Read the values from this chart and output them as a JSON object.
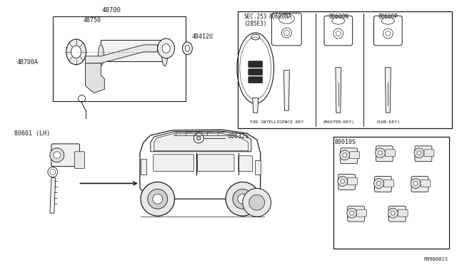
{
  "background_color": "#ffffff",
  "line_color": "#1a1a1a",
  "text_color": "#1a1a1a",
  "fig_width": 6.4,
  "fig_height": 3.72,
  "dpi": 100,
  "labels": {
    "top_assembly": "48700",
    "top_sub1": "48750",
    "top_sub2": "4B412U",
    "top_sub3": "4B700A",
    "sec": "SEC.253",
    "sec2": "(285E3)",
    "key1_code": "80600NA",
    "key2_code": "B0600N",
    "key3_code": "80600P",
    "key1_label": "FOR INTELLIGENCE KEY",
    "key2_label": "(MASTER-KEY)",
    "key3_label": "(SUB-KEY)",
    "door_lock": "80601 (LH)",
    "cap": "68632S",
    "set_code": "80010S",
    "ref_code": "R99B001S"
  }
}
